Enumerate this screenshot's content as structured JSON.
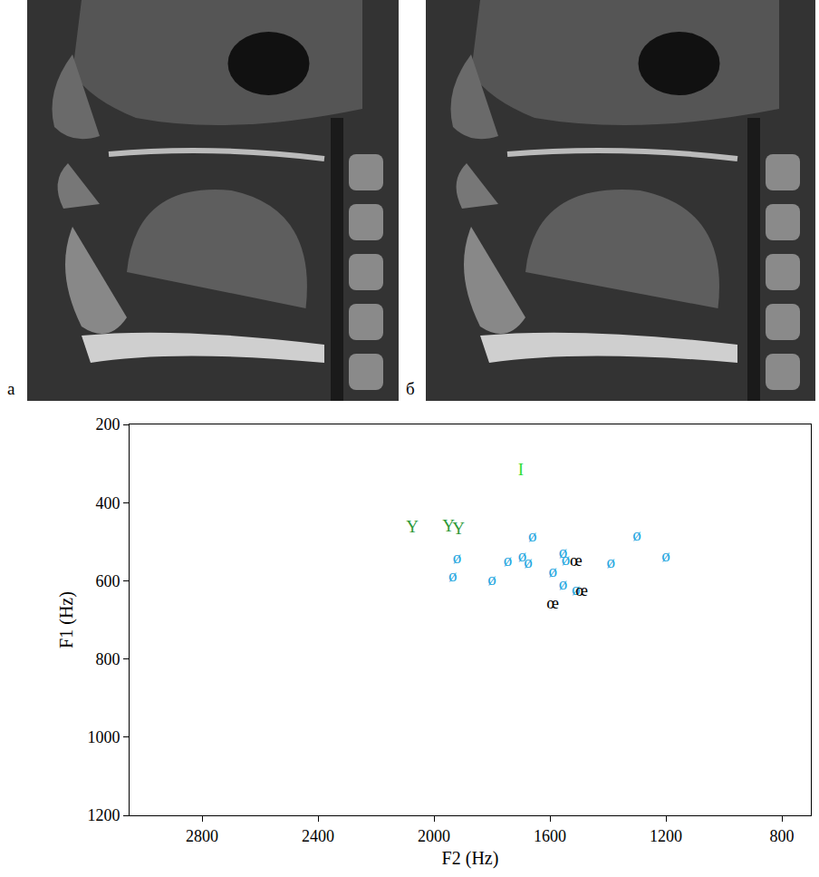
{
  "panels": [
    {
      "label": "а"
    },
    {
      "label": "б"
    }
  ],
  "chart_data": {
    "type": "scatter",
    "x_label": "F2 (Hz)",
    "y_label": "F1 (Hz)",
    "xlim": [
      3050,
      700
    ],
    "xticks": [
      2800,
      2400,
      2000,
      1600,
      1200,
      800
    ],
    "ylim": [
      1200,
      200
    ],
    "yticks": [
      200,
      400,
      600,
      800,
      1000,
      1200
    ],
    "grid": false,
    "series": [
      {
        "name": "ø",
        "color": "#1ea6e0",
        "marker": "text",
        "x": [
          1920,
          1935,
          1800,
          1745,
          1695,
          1675,
          1660,
          1590,
          1555,
          1545,
          1555,
          1510,
          1390,
          1300,
          1200
        ],
        "values": [
          545,
          590,
          600,
          550,
          540,
          555,
          488,
          578,
          530,
          548,
          612,
          625,
          555,
          487,
          540
        ]
      },
      {
        "name": "œ",
        "color": "#000000",
        "marker": "text",
        "x": [
          1510,
          1490,
          1590
        ],
        "values": [
          550,
          628,
          660
        ]
      },
      {
        "name": "I",
        "color": "#33dd33",
        "marker": "text",
        "x": [
          1700
        ],
        "values": [
          318
        ]
      },
      {
        "name": "Y",
        "color": "#2e9a3a",
        "marker": "text",
        "x": [
          2075,
          1950,
          1915
        ],
        "values": [
          465,
          462,
          470
        ]
      }
    ]
  }
}
